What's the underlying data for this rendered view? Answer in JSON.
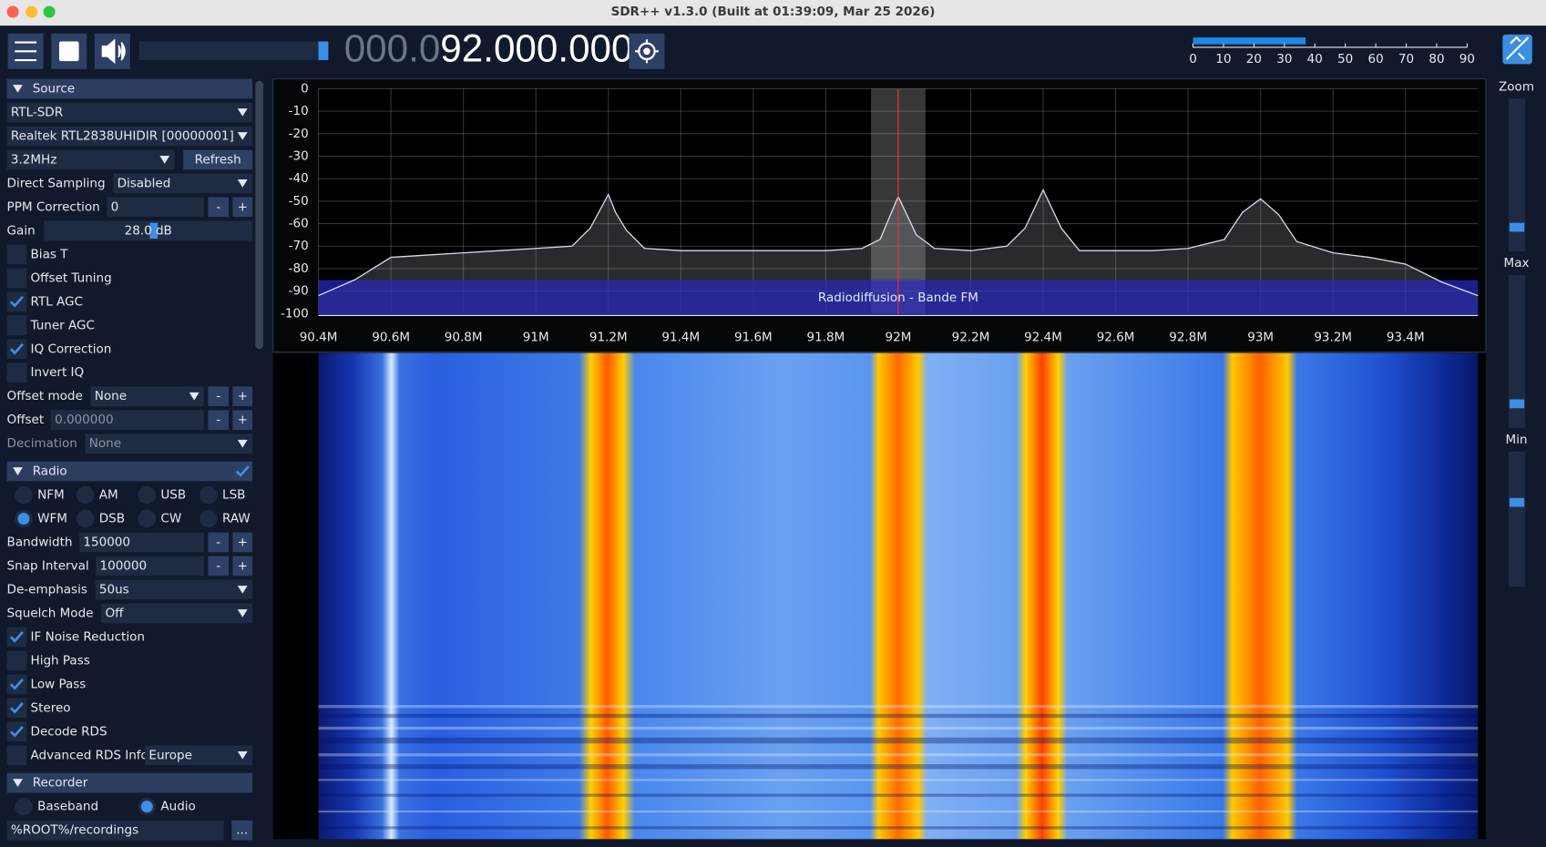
{
  "window": {
    "title": "SDR++ v1.3.0 (Built at 01:39:09, Mar 25 2026)"
  },
  "toolbar": {
    "frequency_dim": "000.0",
    "frequency": "92.000.000"
  },
  "audio_meter": {
    "level": 37,
    "lim": [
      0,
      90
    ],
    "ticks": [
      0,
      10,
      20,
      30,
      40,
      50,
      60,
      70,
      80,
      90
    ]
  },
  "sidebar": {
    "minus": "-",
    "plus": "+",
    "rows": [
      {
        "kind": "header",
        "label": "Source"
      },
      {
        "kind": "combo",
        "value": "RTL-SDR"
      },
      {
        "kind": "combo",
        "value": "Realtek RTL2838UHIDIR [00000001]"
      },
      {
        "kind": "combo_button",
        "value": "3.2MHz",
        "button": "Refresh"
      },
      {
        "kind": "labeled_combo",
        "label": "Direct Sampling",
        "value": "Disabled"
      },
      {
        "kind": "labeled_input",
        "label": "PPM Correction",
        "value": "0"
      },
      {
        "kind": "slider",
        "label": "Gain",
        "value": "28.0 dB"
      },
      {
        "kind": "check",
        "label": "Bias T",
        "checked": false
      },
      {
        "kind": "check",
        "label": "Offset Tuning",
        "checked": false
      },
      {
        "kind": "check",
        "label": "RTL AGC",
        "checked": true
      },
      {
        "kind": "check",
        "label": "Tuner AGC",
        "checked": false
      },
      {
        "kind": "check",
        "label": "IQ Correction",
        "checked": true
      },
      {
        "kind": "check",
        "label": "Invert IQ",
        "checked": false
      },
      {
        "kind": "labeled_combo",
        "label": "Offset mode",
        "value": "None",
        "steppers": true
      },
      {
        "kind": "labeled_input",
        "label": "Offset",
        "value": "0.000000",
        "disabled": true
      },
      {
        "kind": "labeled_combo",
        "label": "Decimation",
        "value": "None",
        "disabled": true
      },
      {
        "kind": "header",
        "label": "Radio",
        "checked": true
      },
      {
        "kind": "radios",
        "options": [
          "NFM",
          "AM",
          "USB",
          "LSB"
        ]
      },
      {
        "kind": "radios",
        "options": [
          "WFM",
          "DSB",
          "CW",
          "RAW"
        ],
        "selected": 0
      },
      {
        "kind": "labeled_input",
        "label": "Bandwidth",
        "value": "150000"
      },
      {
        "kind": "labeled_input",
        "label": "Snap Interval",
        "value": "100000"
      },
      {
        "kind": "labeled_combo",
        "label": "De-emphasis",
        "value": "50us"
      },
      {
        "kind": "labeled_combo",
        "label": "Squelch Mode",
        "value": "Off"
      },
      {
        "kind": "check",
        "label": "IF Noise Reduction",
        "checked": true
      },
      {
        "kind": "check",
        "label": "High Pass",
        "checked": false
      },
      {
        "kind": "check",
        "label": "Low Pass",
        "checked": true
      },
      {
        "kind": "check",
        "label": "Stereo",
        "checked": true
      },
      {
        "kind": "check",
        "label": "Decode RDS",
        "checked": true
      },
      {
        "kind": "check",
        "label": "Advanced RDS Info",
        "checked": false,
        "value": "Europe"
      },
      {
        "kind": "header",
        "label": "Recorder"
      },
      {
        "kind": "radios",
        "options": [
          "Baseband",
          "Audio"
        ],
        "selected": 1
      },
      {
        "kind": "input_button",
        "value": "%ROOT%/recordings",
        "button": "..."
      }
    ]
  },
  "spectrum": {
    "xlim": [
      90.4,
      93.6
    ],
    "ylim": [
      -100,
      0
    ],
    "xticks": [
      {
        "value": 90.4,
        "label": "90.4M"
      },
      {
        "value": 90.6,
        "label": "90.6M"
      },
      {
        "value": 90.8,
        "label": "90.8M"
      },
      {
        "value": 91.0,
        "label": "91M"
      },
      {
        "value": 91.2,
        "label": "91.2M"
      },
      {
        "value": 91.4,
        "label": "91.4M"
      },
      {
        "value": 91.6,
        "label": "91.6M"
      },
      {
        "value": 91.8,
        "label": "91.8M"
      },
      {
        "value": 92.0,
        "label": "92M"
      },
      {
        "value": 92.2,
        "label": "92.2M"
      },
      {
        "value": 92.4,
        "label": "92.4M"
      },
      {
        "value": 92.6,
        "label": "92.6M"
      },
      {
        "value": 92.8,
        "label": "92.8M"
      },
      {
        "value": 93.0,
        "label": "93M"
      },
      {
        "value": 93.2,
        "label": "93.2M"
      },
      {
        "value": 93.4,
        "label": "93.4M"
      }
    ],
    "yticks": [
      0,
      -10,
      -20,
      -30,
      -40,
      -50,
      -60,
      -70,
      -80,
      -90,
      -100
    ],
    "x": [
      90.4,
      90.5,
      90.6,
      90.7,
      90.8,
      90.9,
      91.0,
      91.1,
      91.15,
      91.2,
      91.22,
      91.25,
      91.3,
      91.4,
      91.5,
      91.6,
      91.7,
      91.8,
      91.9,
      91.95,
      92.0,
      92.05,
      92.1,
      92.2,
      92.3,
      92.35,
      92.4,
      92.45,
      92.5,
      92.6,
      92.7,
      92.8,
      92.9,
      92.95,
      93.0,
      93.05,
      93.1,
      93.2,
      93.3,
      93.4,
      93.5,
      93.6
    ],
    "values": [
      -92,
      -85,
      -75,
      -74,
      -73,
      -72,
      -71,
      -70,
      -62,
      -47,
      -55,
      -63,
      -71,
      -72,
      -72,
      -72,
      -72,
      -72,
      -71,
      -67,
      -48,
      -65,
      -71,
      -72,
      -70,
      -62,
      -45,
      -62,
      -72,
      -72,
      -72,
      -71,
      -67,
      -55,
      -49,
      -56,
      -68,
      -73,
      -75,
      -78,
      -86,
      -92
    ],
    "vfo": {
      "center": 92.0,
      "width": 0.15
    },
    "band_label": "Radiodiffusion - Bande FM"
  },
  "right_panel": {
    "zoom": "Zoom",
    "max": "Max",
    "min": "Min"
  }
}
